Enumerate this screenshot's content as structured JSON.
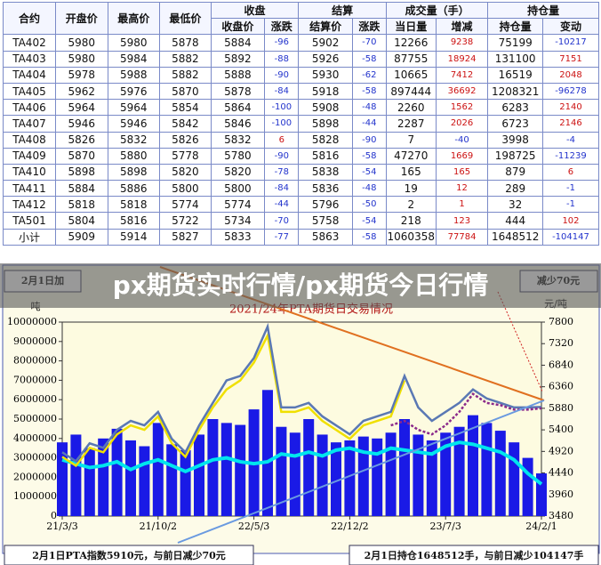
{
  "table": {
    "header_top": [
      "合约",
      "开盘价",
      "最高价",
      "最低价",
      "收盘",
      "结算",
      "成交量（手）",
      "持仓量"
    ],
    "header_sub": [
      "收盘价",
      "涨跌",
      "结算价",
      "涨跌",
      "当日量",
      "增减",
      "持仓量",
      "变动"
    ],
    "rows": [
      [
        "TA402",
        5980,
        5980,
        5878,
        5884,
        -96,
        5902,
        -70,
        12266,
        9238,
        75199,
        -10217
      ],
      [
        "TA403",
        5980,
        5984,
        5882,
        5892,
        -88,
        5926,
        -58,
        87755,
        18924,
        131100,
        7151
      ],
      [
        "TA404",
        5978,
        5988,
        5882,
        5888,
        -90,
        5930,
        -62,
        10665,
        7412,
        16519,
        2048
      ],
      [
        "TA405",
        5962,
        5976,
        5870,
        5878,
        -84,
        5918,
        -58,
        897444,
        36692,
        1208321,
        -96278
      ],
      [
        "TA406",
        5964,
        5964,
        5854,
        5864,
        -100,
        5908,
        -48,
        2260,
        1562,
        6283,
        2140
      ],
      [
        "TA407",
        5946,
        5946,
        5842,
        5846,
        -100,
        5898,
        -44,
        2287,
        2026,
        6723,
        2146
      ],
      [
        "TA408",
        5826,
        5832,
        5826,
        5832,
        6,
        5828,
        -90,
        7,
        -40,
        3998,
        -4
      ],
      [
        "TA409",
        5870,
        5880,
        5778,
        5780,
        -90,
        5816,
        -58,
        47270,
        1669,
        198725,
        -11239
      ],
      [
        "TA410",
        5898,
        5898,
        5820,
        5820,
        -78,
        5838,
        -54,
        165,
        165,
        879,
        6
      ],
      [
        "TA411",
        5884,
        5886,
        5800,
        5800,
        -84,
        5836,
        -48,
        19,
        12,
        289,
        -1
      ],
      [
        "TA412",
        5818,
        5818,
        5774,
        5774,
        -44,
        5796,
        -50,
        2,
        1,
        32,
        -1
      ],
      [
        "TA501",
        5804,
        5816,
        5722,
        5734,
        -70,
        5758,
        -54,
        218,
        123,
        444,
        102
      ],
      [
        "小计",
        5909,
        5914,
        5827,
        5833,
        -77,
        5863,
        -58,
        1060358,
        77784,
        1648512,
        -104147
      ]
    ]
  },
  "banner": "px期货实时行情/px期货今日行情",
  "chart_data": {
    "type": "combo",
    "title": "2021/24年PTA期货日交易情况",
    "y_label": "吨",
    "y2_label": "元/吨",
    "categories": [
      "21/3/3",
      null,
      null,
      null,
      null,
      null,
      null,
      "21/10/2",
      null,
      null,
      null,
      null,
      null,
      null,
      "22/5/3",
      null,
      null,
      null,
      null,
      null,
      null,
      "22/12/2",
      null,
      null,
      null,
      null,
      null,
      null,
      "23/7/3",
      null,
      null,
      null,
      null,
      null,
      null,
      "24/2/1"
    ],
    "ylim": [
      0,
      10000000
    ],
    "yticks": [
      0,
      1000000,
      2000000,
      3000000,
      4000000,
      5000000,
      6000000,
      7000000,
      8000000,
      9000000,
      10000000
    ],
    "y2lim": [
      3480,
      7800
    ],
    "y2ticks": [
      3480,
      3960,
      4440,
      4920,
      5400,
      5880,
      6360,
      6840,
      7320,
      7800
    ],
    "series": [
      {
        "type": "bar",
        "color": "#1a1ae6",
        "values": [
          3800000,
          4200000,
          3500000,
          4000000,
          4500000,
          3900000,
          3600000,
          4800000,
          3700000,
          3400000,
          4200000,
          5000000,
          4800000,
          4700000,
          5500000,
          6500000,
          4600000,
          4300000,
          5000000,
          4200000,
          3800000,
          3900000,
          4100000,
          4000000,
          4300000,
          5000000,
          4200000,
          3900000,
          4300000,
          4600000,
          5200000,
          4800000,
          4400000,
          3800000,
          3000000,
          2200000
        ]
      },
      {
        "type": "line",
        "color": "#00e5ee",
        "values": [
          2900000,
          2700000,
          2500000,
          2600000,
          2800000,
          2400000,
          2700000,
          2900000,
          2600000,
          2300000,
          2600000,
          2900000,
          3000000,
          2800000,
          2700000,
          2800000,
          3200000,
          3100000,
          3300000,
          3100000,
          3400000,
          3500000,
          3300000,
          3200000,
          3500000,
          3400000,
          3300000,
          3200000,
          3600000,
          3800000,
          3700000,
          3500000,
          3300000,
          2900000,
          2200000,
          1650000
        ]
      },
      {
        "type": "line",
        "axis": "y2",
        "color": "#f0e000",
        "values": [
          4800,
          4600,
          5000,
          4900,
          5300,
          5500,
          5400,
          5700,
          5100,
          4800,
          5400,
          5900,
          6300,
          6500,
          6900,
          7500,
          5800,
          5800,
          5900,
          5600,
          5400,
          5200,
          5500,
          5600,
          5700,
          6500,
          null,
          null,
          null,
          null,
          null,
          null,
          null,
          null,
          null,
          null
        ]
      },
      {
        "type": "line",
        "axis": "y2",
        "color": "#5a78b4",
        "values": [
          4900,
          4700,
          5100,
          5000,
          5400,
          5600,
          5500,
          5800,
          5200,
          4900,
          5500,
          6000,
          6500,
          6600,
          7000,
          7700,
          5900,
          5900,
          6000,
          5700,
          5500,
          5300,
          5600,
          5700,
          5800,
          6600,
          5900,
          5600,
          5800,
          6000,
          6300,
          6100,
          6000,
          5900,
          5900,
          5910
        ]
      },
      {
        "type": "line",
        "axis": "y2",
        "color": "#8b2a8b",
        "values": [
          null,
          null,
          null,
          null,
          null,
          null,
          null,
          null,
          null,
          null,
          null,
          null,
          null,
          null,
          null,
          null,
          null,
          null,
          null,
          null,
          null,
          null,
          null,
          null,
          5500,
          5600,
          5400,
          5300,
          5500,
          5800,
          6200,
          6000,
          5950,
          5850,
          5850,
          5880
        ]
      }
    ],
    "annotations": [
      "2月1日加",
      "减少70元",
      "2月1日PTA指数5910元，与前日减少70元",
      "2月1日持仓1648512手，与前日减少104147手"
    ]
  }
}
